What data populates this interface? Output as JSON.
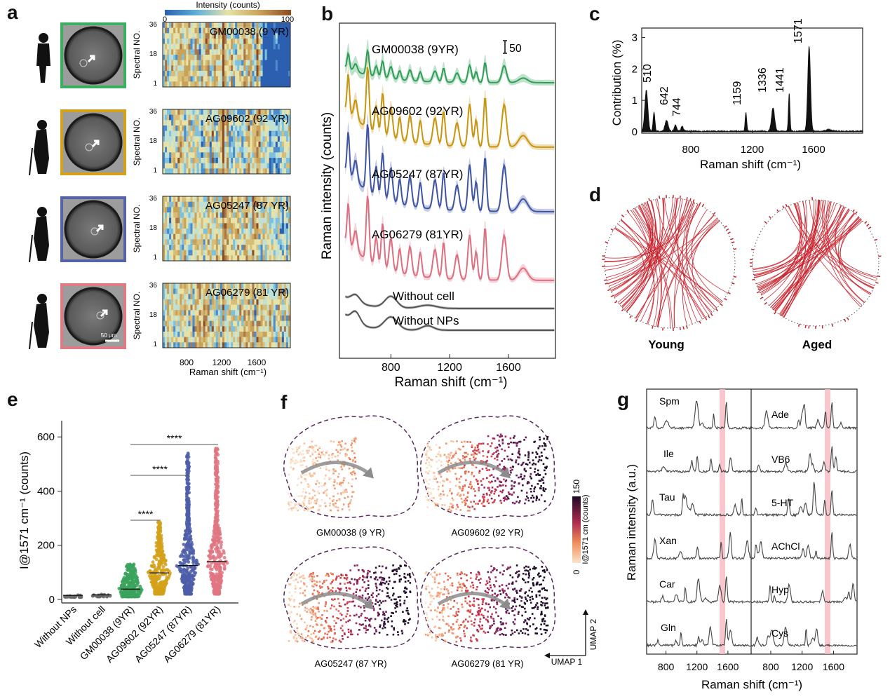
{
  "panels": {
    "a": {
      "label": "a",
      "colorbar": {
        "title": "Intensity (counts)",
        "min": "0",
        "max": "100"
      },
      "rows": [
        {
          "name": "GM00038 (9 YR)",
          "frame_color": "#3cae5f"
        },
        {
          "name": "AG09602 (92 YR)",
          "frame_color": "#d3a11a"
        },
        {
          "name": "AG05247 (87 YR)",
          "frame_color": "#5563a9"
        },
        {
          "name": "AG06279 (81 YR)",
          "frame_color": "#e07b86"
        }
      ],
      "ylabel": "Spectral NO.",
      "yticks": [
        "36",
        "18",
        "1"
      ],
      "xticks": [
        "800",
        "1200",
        "1600"
      ],
      "xlabel": "Raman shift (cm⁻¹)",
      "scalebar": "50 μm"
    },
    "b": {
      "label": "b",
      "ylabel": "Raman intensity (counts)",
      "xlabel": "Raman shift (cm⁻¹)",
      "xticks": [
        "800",
        "1200",
        "1600"
      ],
      "scale": "50",
      "traces": [
        {
          "name": "GM00038 (9YR)",
          "color": "#2f9e57"
        },
        {
          "name": "AG09602 (92YR)",
          "color": "#c7950f"
        },
        {
          "name": "AG05247 (87YR)",
          "color": "#3f55a3"
        },
        {
          "name": "AG06279 (81YR)",
          "color": "#dd7080"
        },
        {
          "name": "Without cell",
          "color": "#555555"
        },
        {
          "name": "Without NPs",
          "color": "#555555"
        }
      ]
    },
    "c": {
      "label": "c",
      "ylabel": "Contribution (%)",
      "xlabel": "Raman shift (cm⁻¹)",
      "yticks": [
        "0",
        "1",
        "2",
        "3"
      ],
      "xticks": [
        "800",
        "1200",
        "1600"
      ],
      "peaks": [
        "510",
        "642",
        "744",
        "1159",
        "1336",
        "1441",
        "1571"
      ]
    },
    "d": {
      "label": "d",
      "groups": [
        "Young",
        "Aged"
      ]
    },
    "e": {
      "label": "e",
      "ylabel": "I@1571 cm⁻¹ (counts)",
      "yticks": [
        "0",
        "200",
        "400",
        "600"
      ],
      "categories": [
        "Without NPs",
        "Without cell",
        "GM00038 (9YR)",
        "AG09602 (92YR)",
        "AG05247 (87YR)",
        "AG06279 (81YR)"
      ],
      "medians": [
        15,
        17,
        38,
        98,
        125,
        140
      ],
      "sig": "****"
    },
    "f": {
      "label": "f",
      "plots": [
        "GM00038 (9 YR)",
        "AG09602 (92 YR)",
        "AG05247 (87 YR)",
        "AG06279 (81 YR)"
      ],
      "colorbar": {
        "title": "I@1571 cm (counts)",
        "min": "0",
        "max": "150"
      },
      "axes": {
        "x": "UMAP 1",
        "y": "UMAP 2"
      }
    },
    "g": {
      "label": "g",
      "ylabel": "Raman intensity (a.u.)",
      "xlabel": "Raman shift (cm⁻¹)",
      "xticks_left": [
        "800",
        "1200",
        "1600"
      ],
      "xticks_right": [
        "800",
        "1200",
        "1600"
      ],
      "left": [
        "Spm",
        "Ile",
        "Tau",
        "Xan",
        "Car",
        "Gln"
      ],
      "right": [
        "Ade",
        "VB6",
        "5-HT",
        "AChCl",
        "Hyp",
        "Cys"
      ]
    }
  }
}
